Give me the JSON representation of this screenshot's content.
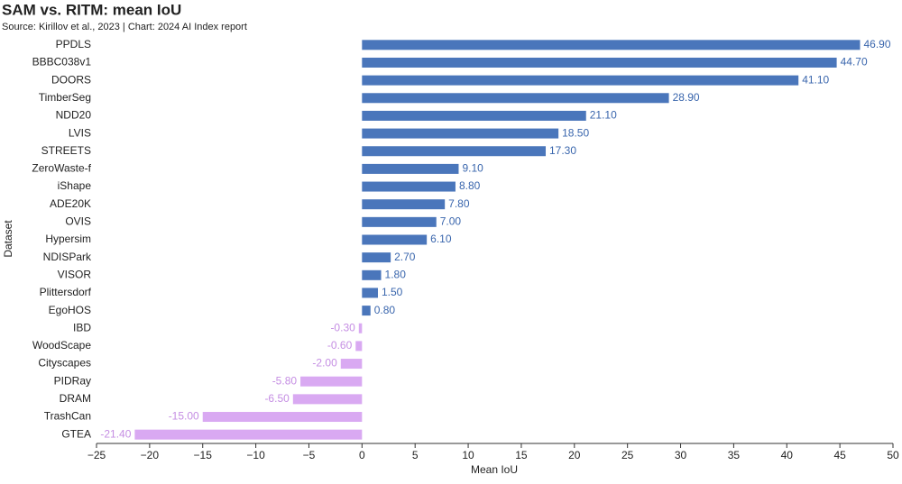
{
  "chart_data": {
    "type": "hbar",
    "title": "SAM vs. RITM: mean IoU",
    "subtitle": "Source: Kirillov et al., 2023 | Chart: 2024 AI Index report",
    "xlabel": "Mean IoU",
    "ylabel": "Dataset",
    "categories": [
      "PPDLS",
      "BBBC038v1",
      "DOORS",
      "TimberSeg",
      "NDD20",
      "LVIS",
      "STREETS",
      "ZeroWaste-f",
      "iShape",
      "ADE20K",
      "OVIS",
      "Hypersim",
      "NDISPark",
      "VISOR",
      "Plittersdorf",
      "EgoHOS",
      "IBD",
      "WoodScape",
      "Cityscapes",
      "PIDRay",
      "DRAM",
      "TrashCan",
      "GTEA"
    ],
    "values": [
      46.9,
      44.7,
      41.1,
      28.9,
      21.1,
      18.5,
      17.3,
      9.1,
      8.8,
      7.8,
      7.0,
      6.1,
      2.7,
      1.8,
      1.5,
      0.8,
      -0.3,
      -0.6,
      -2.0,
      -5.8,
      -6.5,
      -15.0,
      -21.4
    ],
    "value_labels": [
      "46.90",
      "44.70",
      "41.10",
      "28.90",
      "21.10",
      "18.50",
      "17.30",
      "9.10",
      "8.80",
      "7.80",
      "7.00",
      "6.10",
      "2.70",
      "1.80",
      "1.50",
      "0.80",
      "-0.30",
      "-0.60",
      "-2.00",
      "-5.80",
      "-6.50",
      "-15.00",
      "-21.40"
    ],
    "color": "#4a76bb",
    "negative_color": "#d9a9f2",
    "xlim": [
      -25,
      50
    ],
    "xticks": [
      {
        "value": -25,
        "label": "−25"
      },
      {
        "value": -20,
        "label": "−20"
      },
      {
        "value": -15,
        "label": "−15"
      },
      {
        "value": -10,
        "label": "−10"
      },
      {
        "value": -5,
        "label": "−5"
      },
      0,
      5,
      10,
      15,
      20,
      25,
      30,
      35,
      40,
      45,
      50
    ],
    "grid": false
  }
}
